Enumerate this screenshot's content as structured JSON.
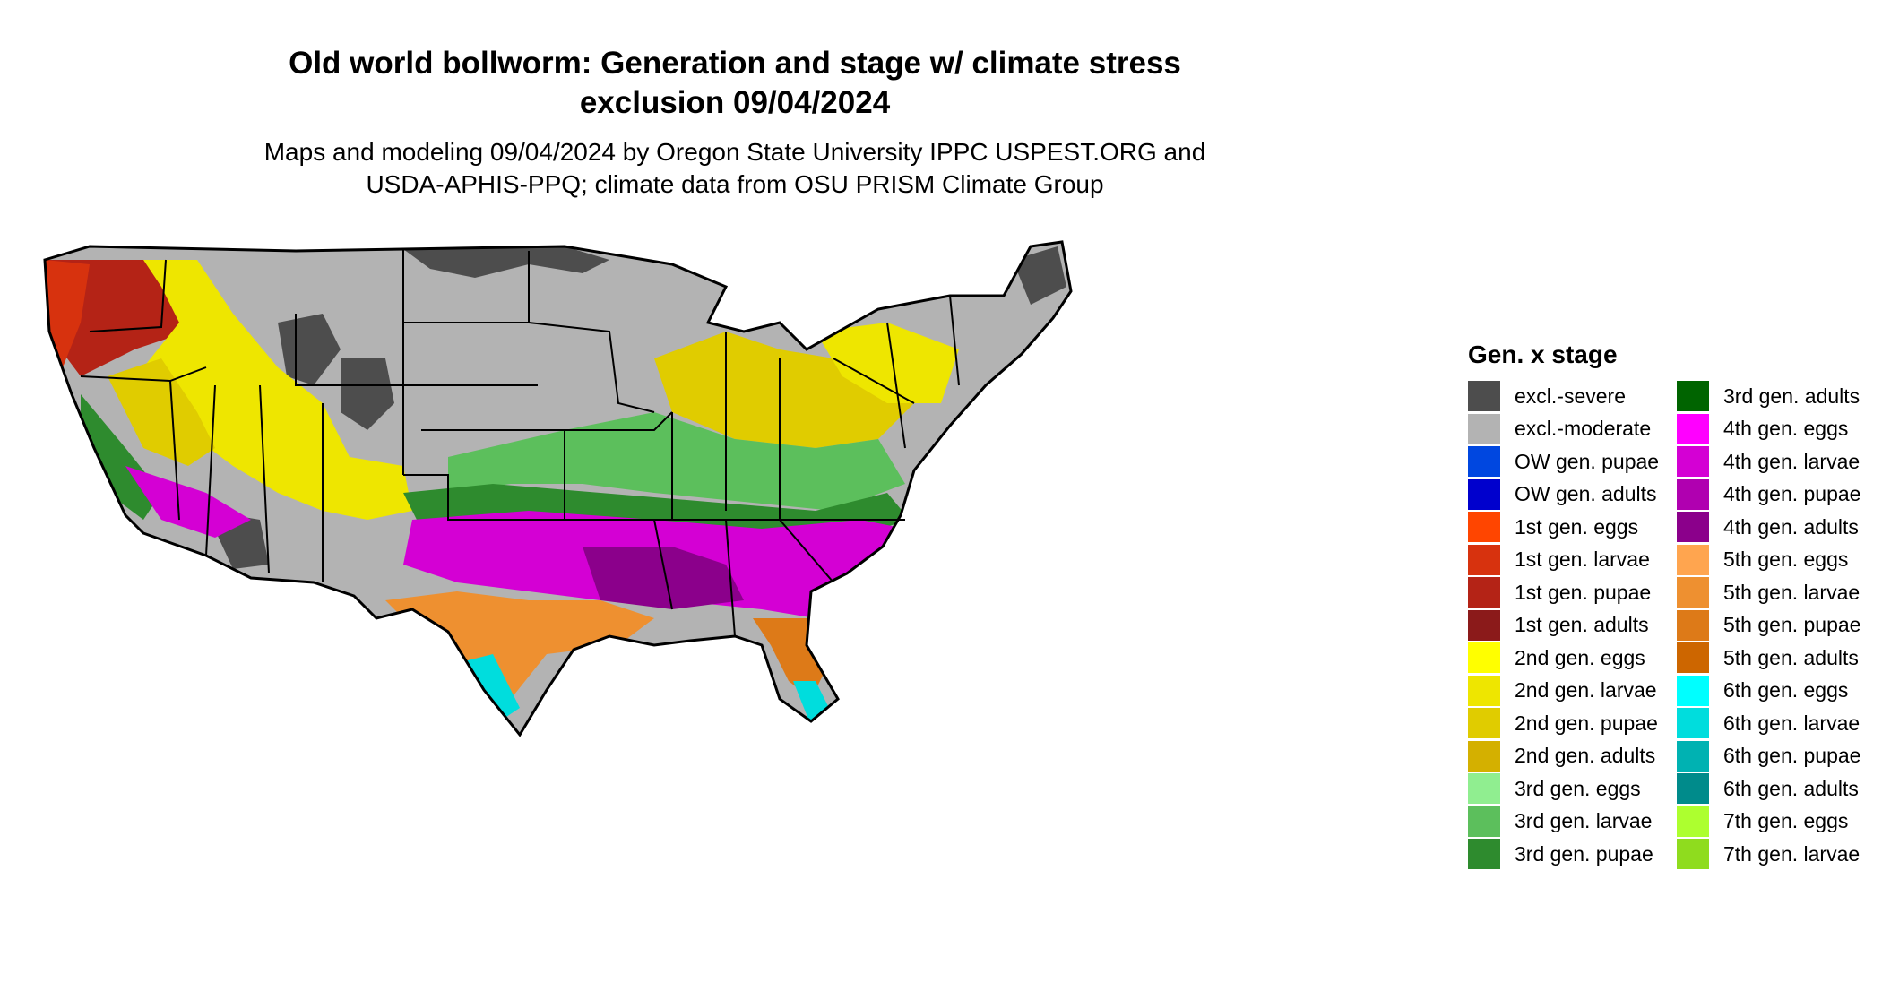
{
  "title": {
    "line1": "Old world bollworm: Generation and stage w/ climate stress",
    "line2": "exclusion 09/04/2024"
  },
  "subtitle": {
    "line1": "Maps and modeling 09/04/2024 by Oregon State University IPPC USPEST.ORG and",
    "line2": "USDA-APHIS-PPQ; climate data from OSU PRISM Climate Group"
  },
  "legend": {
    "title": "Gen. x stage",
    "column1": [
      {
        "label": "excl.-severe",
        "color": "#4d4d4d"
      },
      {
        "label": "excl.-moderate",
        "color": "#b3b3b3"
      },
      {
        "label": "OW gen. pupae",
        "color": "#0047e0"
      },
      {
        "label": "OW gen. adults",
        "color": "#0000cd"
      },
      {
        "label": "1st gen. eggs",
        "color": "#ff4500"
      },
      {
        "label": "1st gen. larvae",
        "color": "#d7320e"
      },
      {
        "label": "1st gen. pupae",
        "color": "#b42316"
      },
      {
        "label": "1st gen. adults",
        "color": "#8b1a1a"
      },
      {
        "label": "2nd gen. eggs",
        "color": "#ffff00"
      },
      {
        "label": "2nd gen. larvae",
        "color": "#eee600"
      },
      {
        "label": "2nd gen. pupae",
        "color": "#e0cc00"
      },
      {
        "label": "2nd gen. adults",
        "color": "#d4b000"
      },
      {
        "label": "3rd gen. eggs",
        "color": "#90ee90"
      },
      {
        "label": "3rd gen. larvae",
        "color": "#5cbf5c"
      },
      {
        "label": "3rd gen. pupae",
        "color": "#2e8b2e"
      }
    ],
    "column2": [
      {
        "label": "3rd gen. adults",
        "color": "#006400"
      },
      {
        "label": "4th gen. eggs",
        "color": "#ff00ff"
      },
      {
        "label": "4th gen. larvae",
        "color": "#d400d4"
      },
      {
        "label": "4th gen. pupae",
        "color": "#b000b0"
      },
      {
        "label": "4th gen. adults",
        "color": "#8b008b"
      },
      {
        "label": "5th gen. eggs",
        "color": "#ffa54f"
      },
      {
        "label": "5th gen. larvae",
        "color": "#ee9030"
      },
      {
        "label": "5th gen. pupae",
        "color": "#dd7a18"
      },
      {
        "label": "5th gen. adults",
        "color": "#cd6600"
      },
      {
        "label": "6th gen. eggs",
        "color": "#00ffff"
      },
      {
        "label": "6th gen. larvae",
        "color": "#00dddd"
      },
      {
        "label": "6th gen. pupae",
        "color": "#00b2b2"
      },
      {
        "label": "6th gen. adults",
        "color": "#008b8b"
      },
      {
        "label": "7th gen. eggs",
        "color": "#adff2f"
      },
      {
        "label": "7th gen. larvae",
        "color": "#8fdc1e"
      }
    ]
  }
}
